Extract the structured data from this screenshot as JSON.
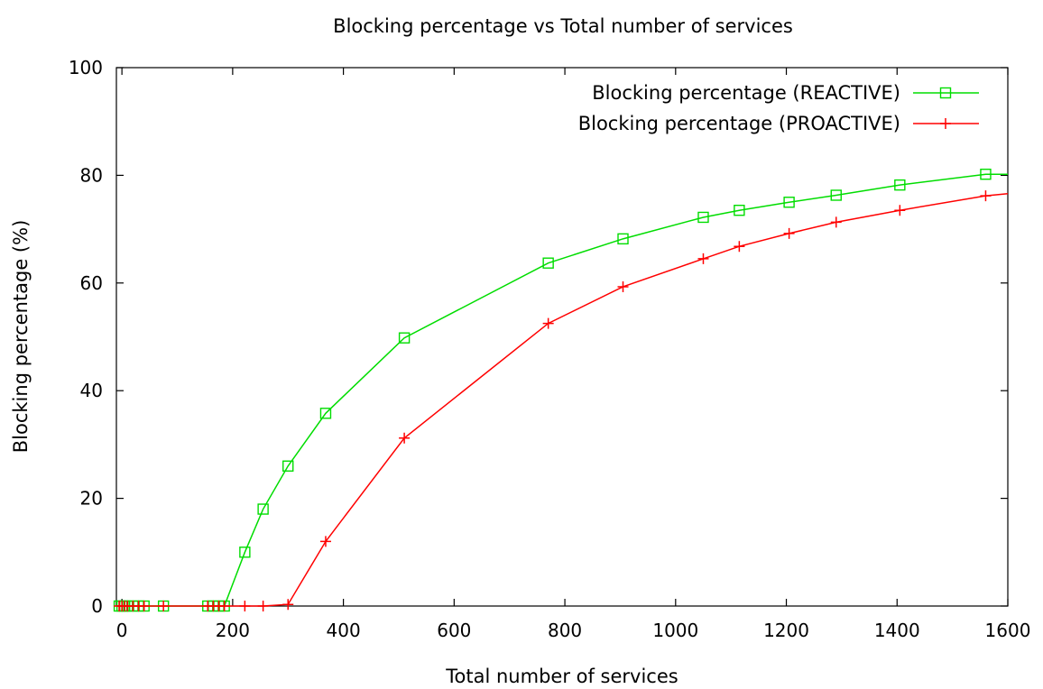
{
  "chart_data": {
    "type": "line",
    "title": "Blocking percentage vs Total number of services",
    "xlabel": "Total number of services",
    "ylabel": "Blocking percentage (%)",
    "xlim": [
      -10,
      1600
    ],
    "ylim": [
      0,
      100
    ],
    "xticks": [
      0,
      200,
      400,
      600,
      800,
      1000,
      1200,
      1400,
      1600
    ],
    "yticks": [
      0,
      20,
      40,
      60,
      80,
      100
    ],
    "grid": false,
    "legend_position": "top-right",
    "series": [
      {
        "name": "Blocking percentage (REACTIVE)",
        "color": "#00dd00",
        "marker": "open-square",
        "x": [
          -5,
          0,
          5,
          10,
          20,
          30,
          40,
          75,
          155,
          165,
          175,
          185,
          222,
          255,
          300,
          368,
          510,
          770,
          905,
          1050,
          1115,
          1205,
          1290,
          1405,
          1560,
          1600
        ],
        "y": [
          0,
          0,
          0,
          0,
          0,
          0,
          0,
          0,
          0,
          0,
          0,
          0,
          10,
          18,
          26,
          35.8,
          49.8,
          63.7,
          68.2,
          72.2,
          73.5,
          75,
          76.3,
          78.2,
          80.2,
          80.2
        ]
      },
      {
        "name": "Blocking percentage (PROACTIVE)",
        "color": "#ff0000",
        "marker": "plus",
        "x": [
          -5,
          0,
          5,
          10,
          20,
          30,
          40,
          75,
          155,
          165,
          175,
          185,
          222,
          255,
          300,
          368,
          510,
          770,
          905,
          1050,
          1115,
          1205,
          1290,
          1405,
          1560,
          1600
        ],
        "y": [
          0,
          0,
          0,
          0,
          0,
          0,
          0,
          0,
          0,
          0,
          0,
          0,
          0,
          0,
          0.3,
          12,
          31.2,
          52.5,
          59.3,
          64.5,
          66.8,
          69.2,
          71.3,
          73.5,
          76.2,
          76.6
        ]
      }
    ]
  }
}
